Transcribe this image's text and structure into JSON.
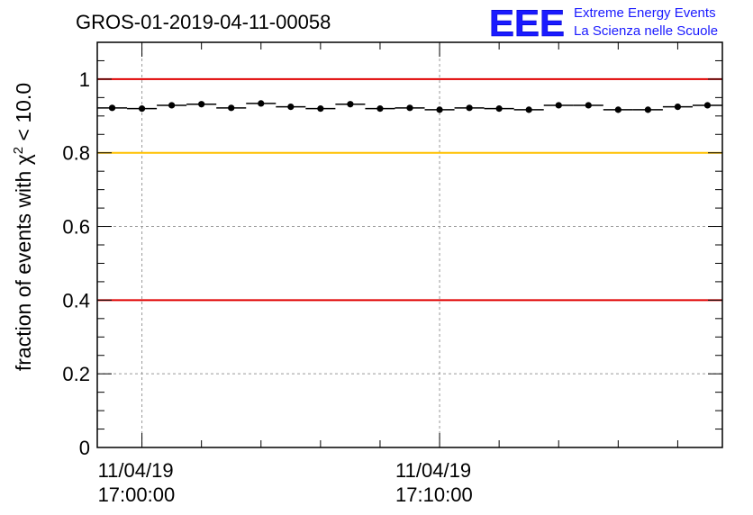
{
  "chart_data": {
    "type": "scatter",
    "title": "GROS-01-2019-04-11-00058",
    "ylabel_main": "fraction of events with ",
    "ylabel_symbol": "χ",
    "ylabel_sup": "2",
    "ylabel_tail": " < 10.0",
    "ylim": [
      0,
      1.1
    ],
    "yticks": [
      0,
      0.2,
      0.4,
      0.6,
      0.8,
      1
    ],
    "ytick_labels": [
      "0",
      "0.2",
      "0.4",
      "0.6",
      "0.8",
      "1"
    ],
    "xlim_minutes": [
      -1.5,
      19.5
    ],
    "xticks_major_minutes": [
      0,
      10
    ],
    "xtick_labels": [
      {
        "date": "11/04/19",
        "time": "17:00:00"
      },
      {
        "date": "11/04/19",
        "time": "17:10:00"
      }
    ],
    "xticks_minor_minutes": [
      2,
      4,
      6,
      8,
      12,
      14,
      16,
      18
    ],
    "grid": true,
    "reference_lines": [
      {
        "y": 1.0,
        "color": "#e00000"
      },
      {
        "y": 0.8,
        "color": "#ffc000"
      },
      {
        "y": 0.4,
        "color": "#e00000"
      }
    ],
    "bin_width_minutes": 1,
    "x": [
      -1,
      0,
      1,
      2,
      3,
      4,
      5,
      6,
      7,
      8,
      9,
      10,
      11,
      12,
      13,
      14,
      15,
      16,
      17,
      18,
      19
    ],
    "y": [
      0.922,
      0.92,
      0.929,
      0.932,
      0.922,
      0.934,
      0.925,
      0.92,
      0.932,
      0.92,
      0.922,
      0.917,
      0.922,
      0.92,
      0.917,
      0.929,
      0.929,
      0.917,
      0.917,
      0.925,
      0.929
    ],
    "colors": {
      "points": "#000000",
      "axis": "#000000",
      "grid": "#999999"
    }
  },
  "logo": {
    "mark": "EEE",
    "line1": "Extreme Energy Events",
    "line2": "La Scienza nelle Scuole",
    "color": "#1a1aff"
  }
}
